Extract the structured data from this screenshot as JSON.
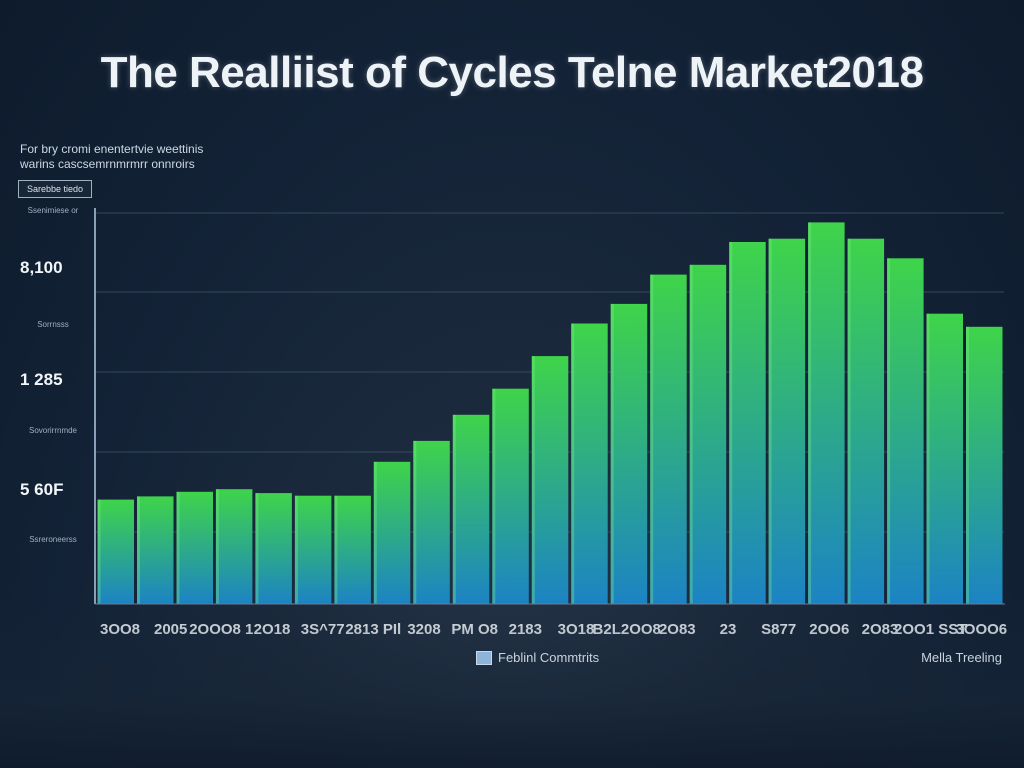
{
  "chart_data": {
    "type": "bar",
    "title": "The Realliist of Cycles Telne Market2018",
    "subtitle_lines": [
      "For bry cromi enentertvie weettinis",
      "warins cascsemrnmrmrr onnroirs"
    ],
    "side_box_label": "Sarebbe tiedo",
    "y_tick_labels": [
      "8,100",
      "1 285",
      "5 60F"
    ],
    "side_notes": [
      "Ssenimiese or",
      "Sorrnsss",
      "Sovorirrnmde",
      "Ssreroneerss"
    ],
    "categories": [
      "3008",
      "2005",
      "2000",
      "8",
      "2018",
      "3S7",
      "2813",
      "PL",
      "3208",
      "PM",
      "08",
      "2183",
      "3018",
      "82",
      "2008",
      "2083",
      "23",
      "S877",
      "2006",
      "2083",
      "2006",
      "S8T",
      "3000"
    ],
    "x_tick_labels": [
      "3OO8",
      "2005",
      "2OOO8 1",
      "2O18",
      "3S^77",
      "2813 PIl",
      "3208",
      "PM O8",
      "2183",
      "3O18",
      "B2L2OO8",
      "2O83",
      "23",
      "S877",
      "2OO6",
      "2O83",
      "2OO1 SST",
      "3OOO6"
    ],
    "values": [
      160,
      165,
      172,
      176,
      170,
      166,
      166,
      218,
      250,
      290,
      330,
      380,
      430,
      460,
      505,
      520,
      555,
      560,
      585,
      560,
      530,
      445,
      425
    ],
    "ylim": [
      0,
      650
    ],
    "series_name": "Feblinl Commtrits",
    "legend_position": "bottom-center",
    "footer_note": "Mella Treeling",
    "colors": {
      "bar_top": "#3fd44a",
      "bar_bottom": "#1c83c4",
      "grid": "#44586e"
    }
  }
}
